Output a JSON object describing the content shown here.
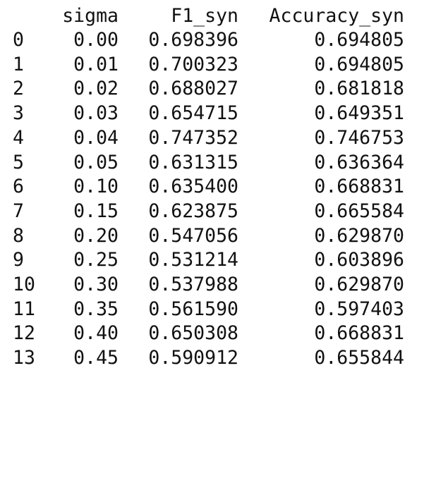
{
  "table": {
    "columns": [
      "sigma",
      "F1_syn",
      "Accuracy_syn"
    ],
    "rows": [
      {
        "index": "0",
        "sigma": "0.00",
        "f1": "0.698396",
        "acc": "0.694805"
      },
      {
        "index": "1",
        "sigma": "0.01",
        "f1": "0.700323",
        "acc": "0.694805"
      },
      {
        "index": "2",
        "sigma": "0.02",
        "f1": "0.688027",
        "acc": "0.681818"
      },
      {
        "index": "3",
        "sigma": "0.03",
        "f1": "0.654715",
        "acc": "0.649351"
      },
      {
        "index": "4",
        "sigma": "0.04",
        "f1": "0.747352",
        "acc": "0.746753"
      },
      {
        "index": "5",
        "sigma": "0.05",
        "f1": "0.631315",
        "acc": "0.636364"
      },
      {
        "index": "6",
        "sigma": "0.10",
        "f1": "0.635400",
        "acc": "0.668831"
      },
      {
        "index": "7",
        "sigma": "0.15",
        "f1": "0.623875",
        "acc": "0.665584"
      },
      {
        "index": "8",
        "sigma": "0.20",
        "f1": "0.547056",
        "acc": "0.629870"
      },
      {
        "index": "9",
        "sigma": "0.25",
        "f1": "0.531214",
        "acc": "0.603896"
      },
      {
        "index": "10",
        "sigma": "0.30",
        "f1": "0.537988",
        "acc": "0.629870"
      },
      {
        "index": "11",
        "sigma": "0.35",
        "f1": "0.561590",
        "acc": "0.597403"
      },
      {
        "index": "12",
        "sigma": "0.40",
        "f1": "0.650308",
        "acc": "0.668831"
      },
      {
        "index": "13",
        "sigma": "0.45",
        "f1": "0.590912",
        "acc": "0.655844"
      }
    ]
  }
}
